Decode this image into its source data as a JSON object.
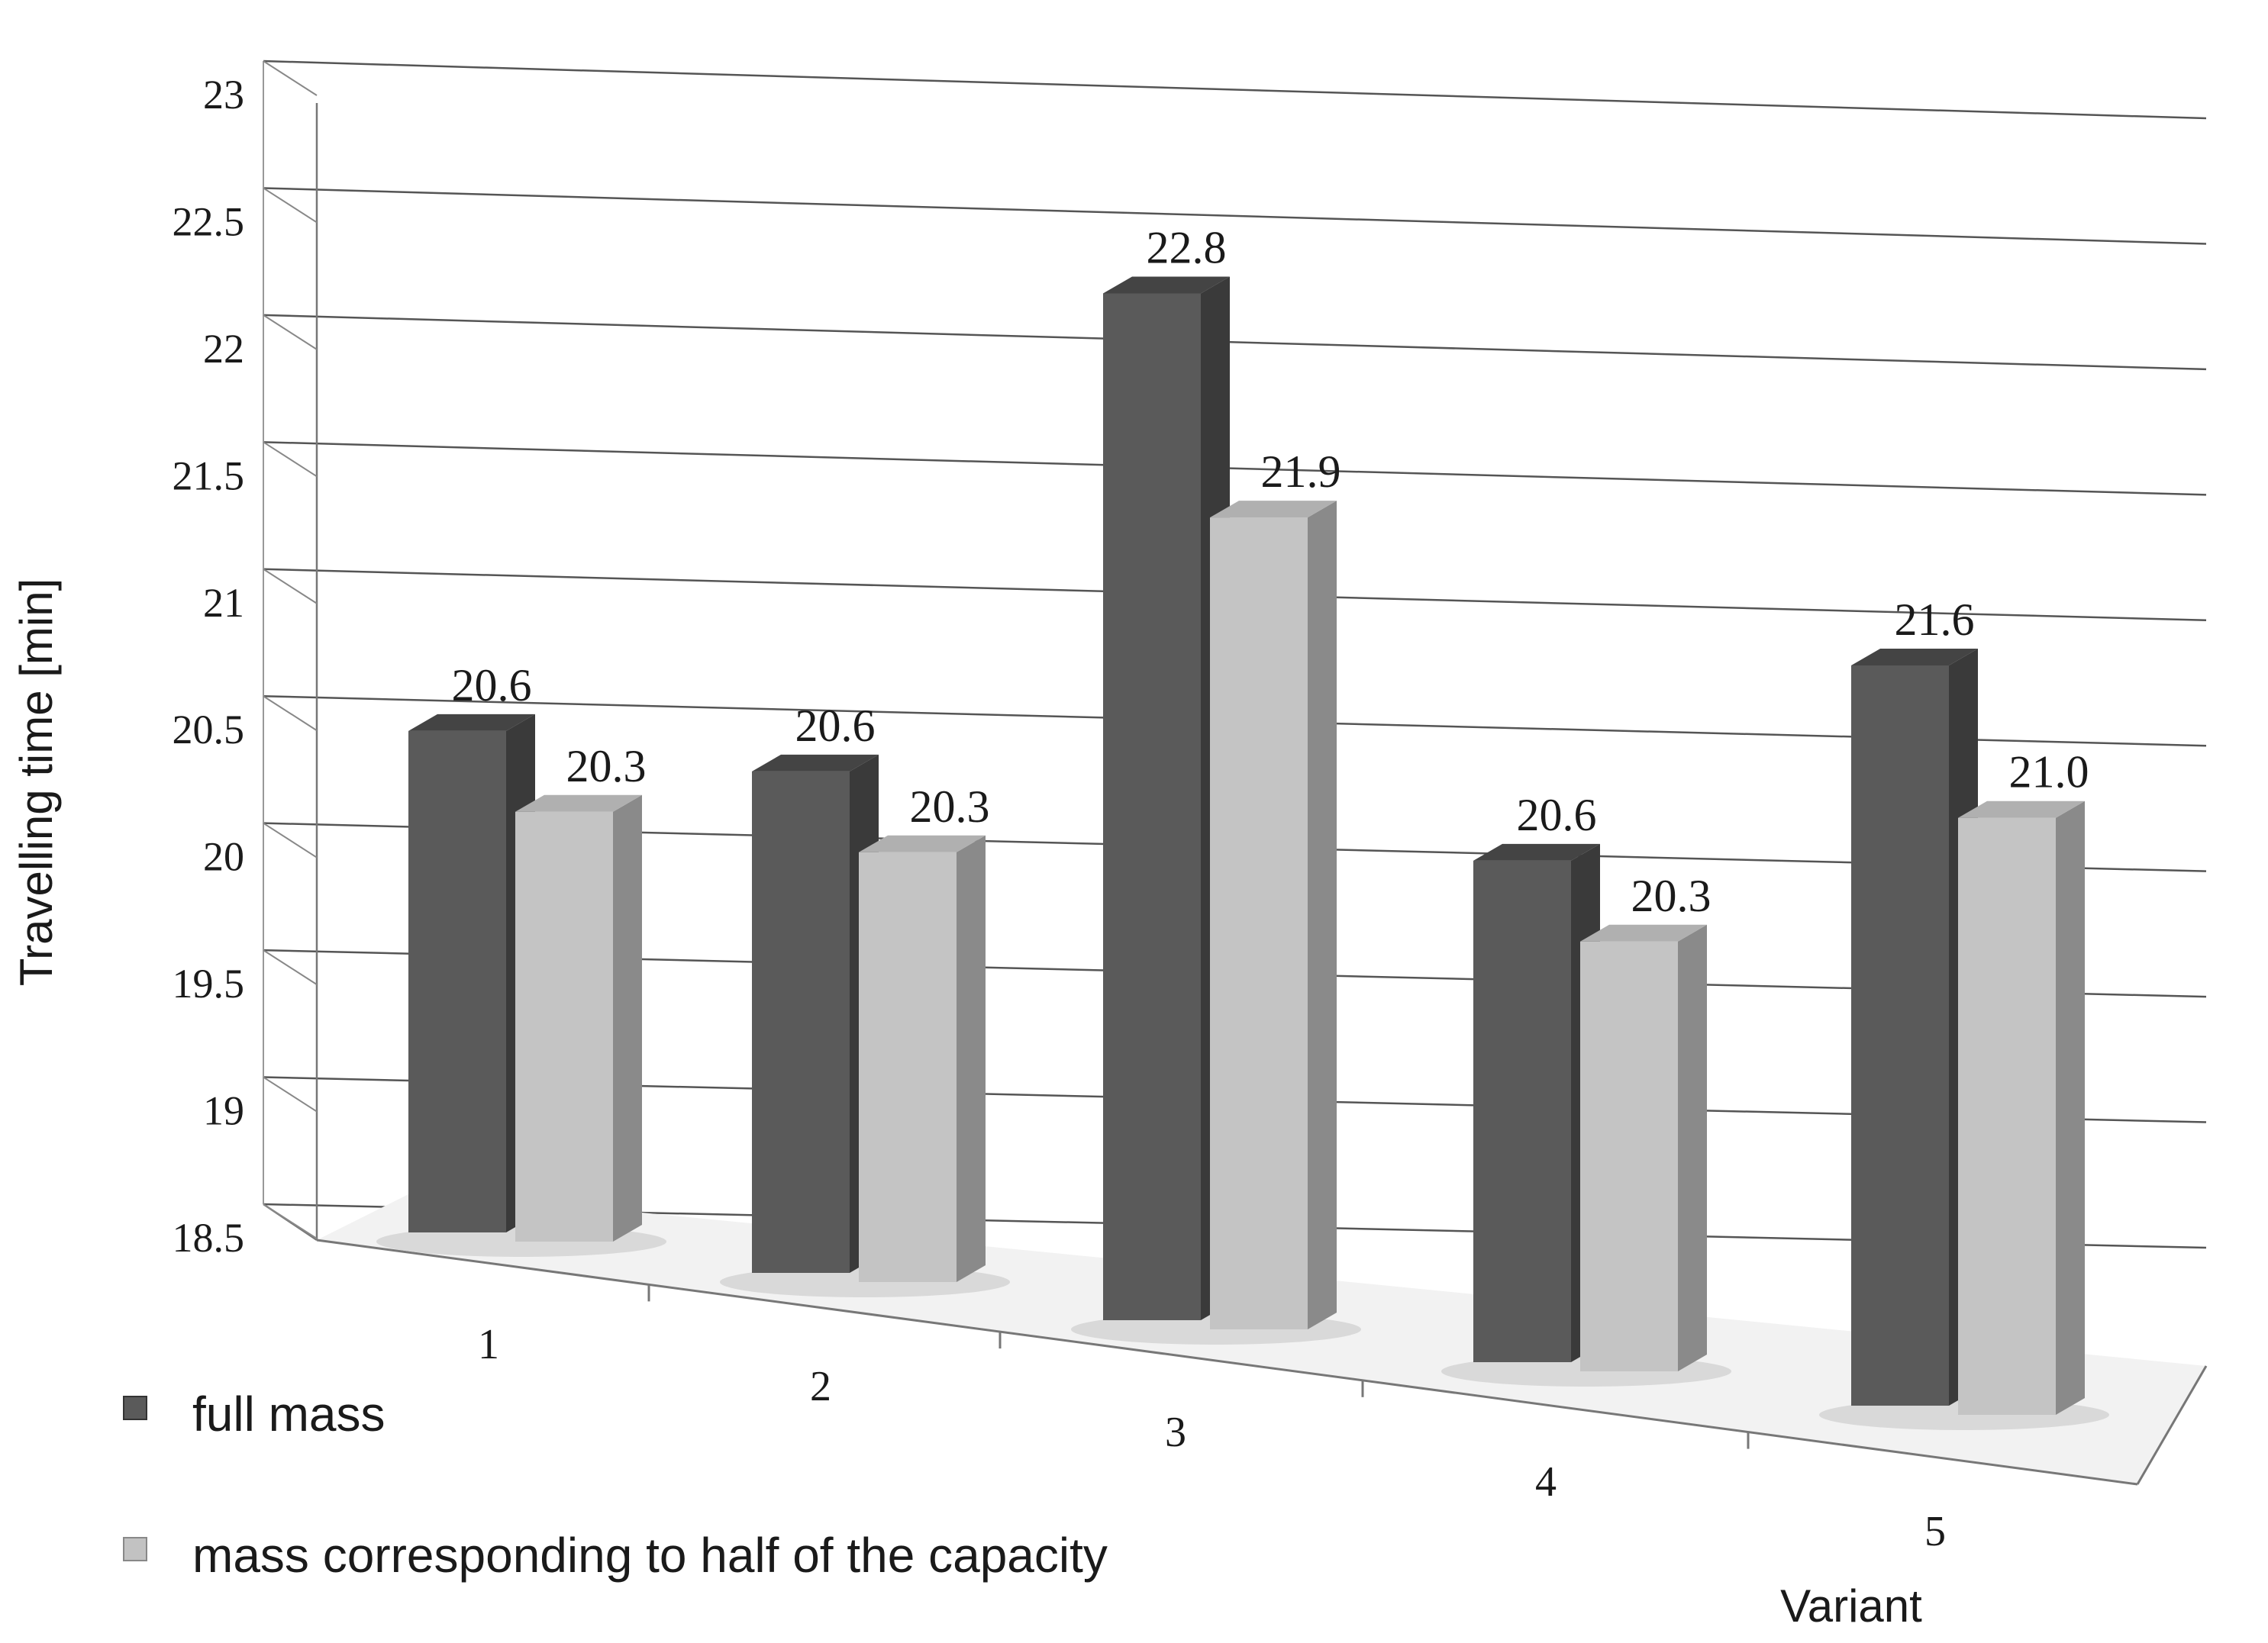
{
  "chart_data": {
    "type": "bar",
    "title": "",
    "xlabel": "Variant",
    "ylabel": "Travelling time [min]",
    "categories": [
      "1",
      "2",
      "3",
      "4",
      "5"
    ],
    "ylim": [
      18.5,
      23
    ],
    "yticks": [
      "18.5",
      "19",
      "19.5",
      "20",
      "20.5",
      "21",
      "21.5",
      "22",
      "22.5",
      "23"
    ],
    "grid": true,
    "legend_position": "bottom-left",
    "series": [
      {
        "name": "full mass",
        "values": [
          20.6,
          20.6,
          22.8,
          20.6,
          21.6
        ],
        "labels": [
          "20.6",
          "20.6",
          "22.8",
          "20.6",
          "21.6"
        ],
        "color": "#5a5a5a"
      },
      {
        "name": "mass corresponding to half of the capacity",
        "values": [
          20.3,
          20.3,
          21.9,
          20.3,
          21.0
        ],
        "labels": [
          "20.3",
          "20.3",
          "21.9",
          "20.3",
          "21.0"
        ],
        "color": "#c2c2c2"
      }
    ]
  }
}
